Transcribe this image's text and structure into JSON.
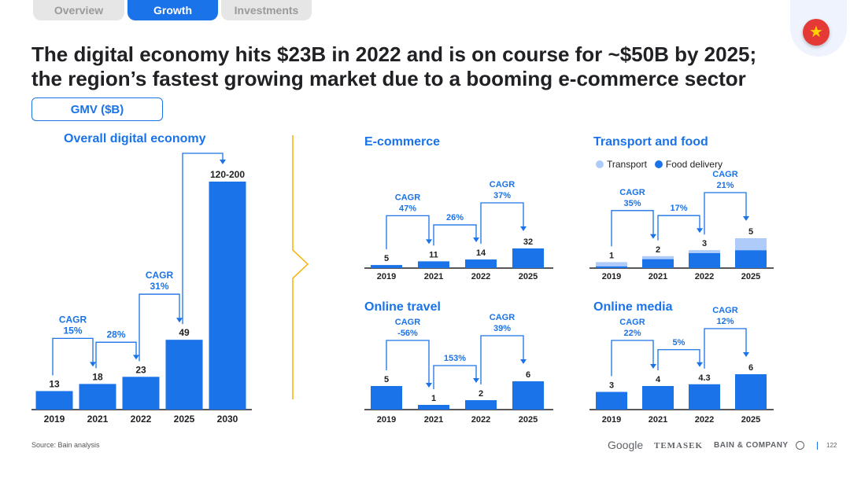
{
  "nav": {
    "tabs": [
      {
        "label": "Overview"
      },
      {
        "label": "Growth"
      },
      {
        "label": "Investments"
      }
    ]
  },
  "headline": {
    "line1": "The digital economy hits $23B in 2022 and is on course for ~$50B by 2025;",
    "line2": "the region’s fastest growing market due to a booming e-commerce sector"
  },
  "unit_label": "GMV ($B)",
  "legend": {
    "transport": "Transport",
    "food": "Food delivery"
  },
  "colors": {
    "accent": "#1a73e8",
    "transport": "#aecbfa",
    "food": "#1a73e8",
    "divider": "#f4b400"
  },
  "chart_data": [
    {
      "id": "overall",
      "type": "bar",
      "title": "Overall digital economy",
      "categories": [
        "2019",
        "2021",
        "2022",
        "2025",
        "2030"
      ],
      "values": [
        13,
        18,
        23,
        49,
        160
      ],
      "value_labels": [
        "13",
        "18",
        "23",
        "49",
        "120-200"
      ],
      "range": {
        "2030": [
          120,
          200
        ]
      },
      "cagr": [
        {
          "from": 0,
          "to": 1,
          "text": [
            "CAGR",
            "15%"
          ]
        },
        {
          "from": 1,
          "to": 2,
          "text": [
            "28%"
          ]
        },
        {
          "from": 2,
          "to": 3,
          "text": [
            "CAGR",
            "31%"
          ]
        },
        {
          "from": 3,
          "to": 4,
          "text": []
        }
      ]
    },
    {
      "id": "ecommerce",
      "type": "bar",
      "title": "E-commerce",
      "categories": [
        "2019",
        "2021",
        "2022",
        "2025"
      ],
      "values": [
        5,
        11,
        14,
        32
      ],
      "value_labels": [
        "5",
        "11",
        "14",
        "32"
      ],
      "cagr": [
        {
          "from": 0,
          "to": 1,
          "text": [
            "CAGR",
            "47%"
          ]
        },
        {
          "from": 1,
          "to": 2,
          "text": [
            "26%"
          ]
        },
        {
          "from": 2,
          "to": 3,
          "text": [
            "CAGR",
            "37%"
          ]
        }
      ]
    },
    {
      "id": "transport",
      "type": "bar",
      "title": "Transport and food",
      "categories": [
        "2019",
        "2021",
        "2022",
        "2025"
      ],
      "series": [
        {
          "name": "Transport",
          "values": [
            0.7,
            0.5,
            0.5,
            2.0
          ]
        },
        {
          "name": "Food delivery",
          "values": [
            0.3,
            1.5,
            2.5,
            3.0
          ]
        }
      ],
      "value_labels": [
        "1",
        "2",
        "3",
        "5"
      ],
      "cagr": [
        {
          "from": 0,
          "to": 1,
          "text": [
            "CAGR",
            "35%"
          ]
        },
        {
          "from": 1,
          "to": 2,
          "text": [
            "17%"
          ]
        },
        {
          "from": 2,
          "to": 3,
          "text": [
            "CAGR",
            "21%"
          ]
        }
      ]
    },
    {
      "id": "travel",
      "type": "bar",
      "title": "Online travel",
      "categories": [
        "2019",
        "2021",
        "2022",
        "2025"
      ],
      "values": [
        5,
        1,
        2,
        6
      ],
      "value_labels": [
        "5",
        "1",
        "2",
        "6"
      ],
      "cagr": [
        {
          "from": 0,
          "to": 1,
          "text": [
            "CAGR",
            "-56%"
          ]
        },
        {
          "from": 1,
          "to": 2,
          "text": [
            "153%"
          ]
        },
        {
          "from": 2,
          "to": 3,
          "text": [
            "CAGR",
            "39%"
          ]
        }
      ]
    },
    {
      "id": "media",
      "type": "bar",
      "title": "Online media",
      "categories": [
        "2019",
        "2021",
        "2022",
        "2025"
      ],
      "values": [
        3,
        4,
        4.3,
        6
      ],
      "value_labels": [
        "3",
        "4",
        "4.3",
        "6"
      ],
      "cagr": [
        {
          "from": 0,
          "to": 1,
          "text": [
            "CAGR",
            "22%"
          ]
        },
        {
          "from": 1,
          "to": 2,
          "text": [
            "5%"
          ]
        },
        {
          "from": 2,
          "to": 3,
          "text": [
            "CAGR",
            "12%"
          ]
        }
      ]
    }
  ],
  "source": "Source: Bain analysis",
  "footer": {
    "google": "Google",
    "temasek": "TEMASEK",
    "bain": "BAIN & COMPANY",
    "page": "122"
  }
}
